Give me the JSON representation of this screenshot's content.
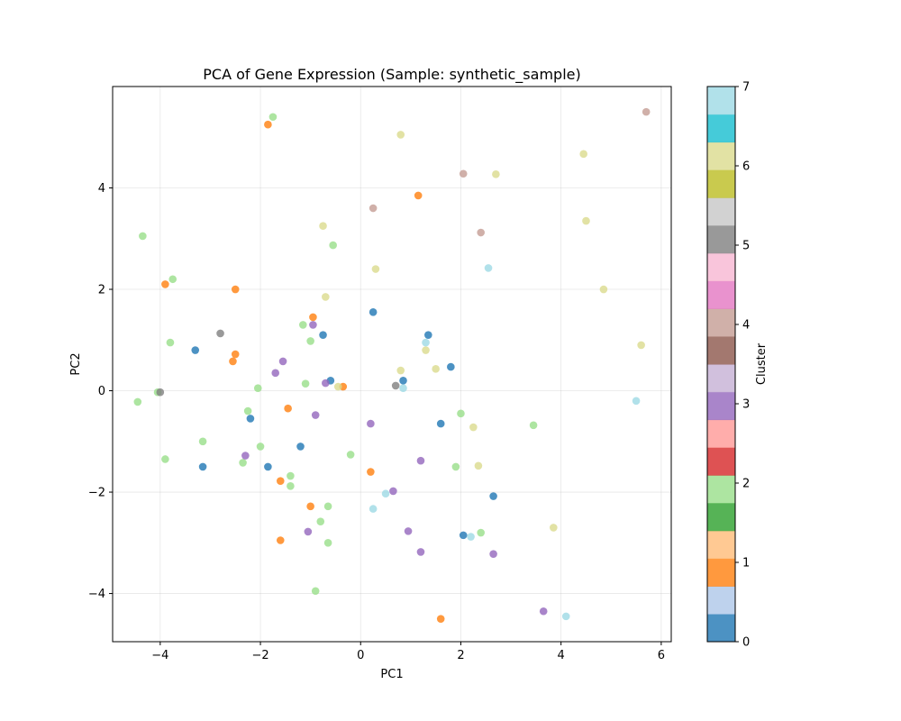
{
  "chart_data": {
    "type": "scatter",
    "title": "PCA of Gene Expression (Sample: synthetic_sample)",
    "xlabel": "PC1",
    "ylabel": "PC2",
    "xlim": [
      -4.95,
      6.2
    ],
    "ylim": [
      -4.95,
      6.0
    ],
    "xticks": [
      -4,
      -2,
      0,
      2,
      4,
      6
    ],
    "yticks": [
      -4,
      -2,
      0,
      2,
      4
    ],
    "grid": true,
    "colorbar": {
      "label": "Cluster",
      "range": [
        0,
        7
      ],
      "ticks": [
        0,
        1,
        2,
        3,
        4,
        5,
        6,
        7
      ],
      "colormap": "tab20",
      "colors": [
        "#1f77b4",
        "#aec7e8",
        "#ff7f0e",
        "#ffbb78",
        "#2ca02c",
        "#98df8a",
        "#d62728",
        "#ff9896",
        "#9467bd",
        "#c5b0d5",
        "#8c564b",
        "#c49c94",
        "#e377c2",
        "#f7b6d2",
        "#7f7f7f",
        "#c7c7c7",
        "#bcbd22",
        "#dbdb8d",
        "#17becf",
        "#9edae5"
      ]
    },
    "point_colors": {
      "0": "#1f77b4",
      "1": "#ff7f0e",
      "2": "#98df8a",
      "3": "#9467bd",
      "4": "#c49c94",
      "5": "#7f7f7f",
      "6": "#dbdb8d",
      "7": "#9edae5"
    },
    "points": [
      {
        "x": -3.3,
        "y": 0.8,
        "c": 0
      },
      {
        "x": -2.2,
        "y": -0.55,
        "c": 0
      },
      {
        "x": -3.15,
        "y": -1.5,
        "c": 0
      },
      {
        "x": -1.85,
        "y": -1.5,
        "c": 0
      },
      {
        "x": -1.2,
        "y": -1.1,
        "c": 0
      },
      {
        "x": -0.75,
        "y": 1.1,
        "c": 0
      },
      {
        "x": -0.6,
        "y": 0.2,
        "c": 0
      },
      {
        "x": 0.25,
        "y": 1.55,
        "c": 0
      },
      {
        "x": 0.85,
        "y": 0.2,
        "c": 0
      },
      {
        "x": 1.35,
        "y": 1.1,
        "c": 0
      },
      {
        "x": 1.6,
        "y": -0.65,
        "c": 0
      },
      {
        "x": 1.8,
        "y": 0.47,
        "c": 0
      },
      {
        "x": 2.05,
        "y": -2.85,
        "c": 0
      },
      {
        "x": 2.65,
        "y": -2.08,
        "c": 0
      },
      {
        "x": -1.85,
        "y": 5.25,
        "c": 1
      },
      {
        "x": -3.9,
        "y": 2.1,
        "c": 1
      },
      {
        "x": -2.5,
        "y": 2.0,
        "c": 1
      },
      {
        "x": -2.55,
        "y": 0.58,
        "c": 1
      },
      {
        "x": -2.5,
        "y": 0.72,
        "c": 1
      },
      {
        "x": -0.95,
        "y": 1.45,
        "c": 1
      },
      {
        "x": -1.45,
        "y": -0.35,
        "c": 1
      },
      {
        "x": -0.35,
        "y": 0.08,
        "c": 1
      },
      {
        "x": -1.6,
        "y": -1.78,
        "c": 1
      },
      {
        "x": -1.0,
        "y": -2.28,
        "c": 1
      },
      {
        "x": -1.6,
        "y": -2.95,
        "c": 1
      },
      {
        "x": 0.2,
        "y": -1.6,
        "c": 1
      },
      {
        "x": 1.15,
        "y": 3.85,
        "c": 1
      },
      {
        "x": 1.6,
        "y": -4.5,
        "c": 1
      },
      {
        "x": -1.75,
        "y": 5.4,
        "c": 2
      },
      {
        "x": -4.35,
        "y": 3.05,
        "c": 2
      },
      {
        "x": -3.75,
        "y": 2.2,
        "c": 2
      },
      {
        "x": -3.8,
        "y": 0.95,
        "c": 2
      },
      {
        "x": -4.45,
        "y": -0.22,
        "c": 2
      },
      {
        "x": -4.05,
        "y": -0.03,
        "c": 2
      },
      {
        "x": -2.25,
        "y": -0.4,
        "c": 2
      },
      {
        "x": -2.05,
        "y": 0.05,
        "c": 2
      },
      {
        "x": -3.9,
        "y": -1.35,
        "c": 2
      },
      {
        "x": -3.15,
        "y": -1.0,
        "c": 2
      },
      {
        "x": -2.35,
        "y": -1.42,
        "c": 2
      },
      {
        "x": -2.0,
        "y": -1.1,
        "c": 2
      },
      {
        "x": -1.4,
        "y": -1.68,
        "c": 2
      },
      {
        "x": -1.4,
        "y": -1.88,
        "c": 2
      },
      {
        "x": -1.15,
        "y": 1.3,
        "c": 2
      },
      {
        "x": -1.0,
        "y": 0.98,
        "c": 2
      },
      {
        "x": -1.1,
        "y": 0.14,
        "c": 2
      },
      {
        "x": -0.55,
        "y": 2.87,
        "c": 2
      },
      {
        "x": -0.2,
        "y": -1.26,
        "c": 2
      },
      {
        "x": -0.65,
        "y": -2.28,
        "c": 2
      },
      {
        "x": -0.8,
        "y": -2.58,
        "c": 2
      },
      {
        "x": -0.65,
        "y": -3.0,
        "c": 2
      },
      {
        "x": -0.9,
        "y": -3.95,
        "c": 2
      },
      {
        "x": 1.9,
        "y": -1.5,
        "c": 2
      },
      {
        "x": 2.0,
        "y": -0.45,
        "c": 2
      },
      {
        "x": 2.4,
        "y": -2.8,
        "c": 2
      },
      {
        "x": 3.45,
        "y": -0.68,
        "c": 2
      },
      {
        "x": -0.95,
        "y": 1.3,
        "c": 3
      },
      {
        "x": -1.7,
        "y": 0.35,
        "c": 3
      },
      {
        "x": -1.55,
        "y": 0.58,
        "c": 3
      },
      {
        "x": -0.7,
        "y": 0.15,
        "c": 3
      },
      {
        "x": -0.9,
        "y": -0.48,
        "c": 3
      },
      {
        "x": -2.3,
        "y": -1.28,
        "c": 3
      },
      {
        "x": -1.05,
        "y": -2.78,
        "c": 3
      },
      {
        "x": 0.2,
        "y": -0.65,
        "c": 3
      },
      {
        "x": 0.65,
        "y": -1.98,
        "c": 3
      },
      {
        "x": 0.95,
        "y": -2.77,
        "c": 3
      },
      {
        "x": 1.2,
        "y": -1.38,
        "c": 3
      },
      {
        "x": 1.2,
        "y": -3.18,
        "c": 3
      },
      {
        "x": 2.65,
        "y": -3.22,
        "c": 3
      },
      {
        "x": 3.65,
        "y": -4.35,
        "c": 3
      },
      {
        "x": 0.25,
        "y": 3.6,
        "c": 4
      },
      {
        "x": 2.05,
        "y": 4.28,
        "c": 4
      },
      {
        "x": 2.4,
        "y": 3.12,
        "c": 4
      },
      {
        "x": 5.7,
        "y": 5.5,
        "c": 4
      },
      {
        "x": -2.8,
        "y": 1.13,
        "c": 5
      },
      {
        "x": -4.0,
        "y": -0.03,
        "c": 5
      },
      {
        "x": 0.7,
        "y": 0.1,
        "c": 5
      },
      {
        "x": -0.75,
        "y": 3.25,
        "c": 6
      },
      {
        "x": -0.7,
        "y": 1.85,
        "c": 6
      },
      {
        "x": -0.45,
        "y": 0.08,
        "c": 6
      },
      {
        "x": 0.3,
        "y": 2.4,
        "c": 6
      },
      {
        "x": 0.8,
        "y": 5.05,
        "c": 6
      },
      {
        "x": 0.8,
        "y": 0.4,
        "c": 6
      },
      {
        "x": 1.3,
        "y": 0.8,
        "c": 6
      },
      {
        "x": 1.5,
        "y": 0.43,
        "c": 6
      },
      {
        "x": 2.25,
        "y": -0.72,
        "c": 6
      },
      {
        "x": 2.35,
        "y": -1.48,
        "c": 6
      },
      {
        "x": 2.7,
        "y": 4.27,
        "c": 6
      },
      {
        "x": 3.85,
        "y": -2.7,
        "c": 6
      },
      {
        "x": 4.45,
        "y": 4.67,
        "c": 6
      },
      {
        "x": 4.5,
        "y": 3.35,
        "c": 6
      },
      {
        "x": 4.85,
        "y": 2.0,
        "c": 6
      },
      {
        "x": 5.6,
        "y": 0.9,
        "c": 6
      },
      {
        "x": 0.85,
        "y": 0.05,
        "c": 7
      },
      {
        "x": 1.3,
        "y": 0.95,
        "c": 7
      },
      {
        "x": 2.55,
        "y": 2.42,
        "c": 7
      },
      {
        "x": 0.25,
        "y": -2.33,
        "c": 7
      },
      {
        "x": 0.5,
        "y": -2.03,
        "c": 7
      },
      {
        "x": 2.2,
        "y": -2.88,
        "c": 7
      },
      {
        "x": 4.1,
        "y": -4.45,
        "c": 7
      },
      {
        "x": 5.5,
        "y": -0.2,
        "c": 7
      }
    ]
  }
}
